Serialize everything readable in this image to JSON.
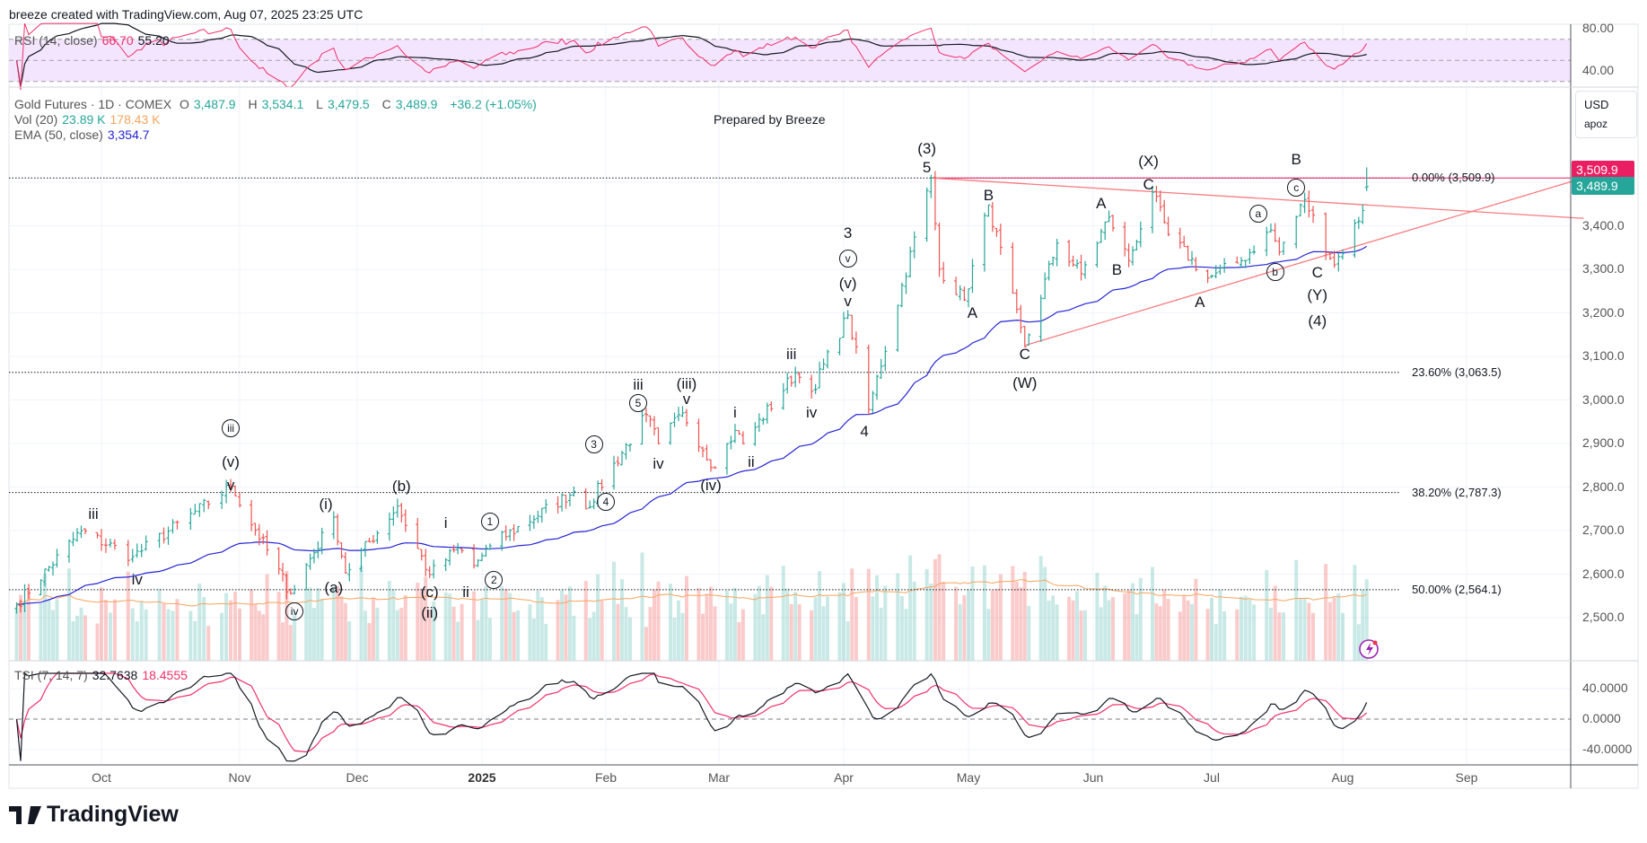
{
  "header": {
    "attribution": "breeze created with TradingView.com, Aug 07, 2025 23:25 UTC"
  },
  "rsi_legend": {
    "label": "RSI (14, close)",
    "rsi": "66.70",
    "ma": "55.20"
  },
  "main_legend": {
    "symbol": "Gold Futures · 1D · COMEX",
    "o_label": "O",
    "open": "3,487.9",
    "h_label": "H",
    "high": "3,534.1",
    "l_label": "L",
    "low": "3,479.5",
    "c_label": "C",
    "close": "3,489.9",
    "change": "+36.2 (+1.05%)"
  },
  "vol_legend": {
    "label": "Vol (20)",
    "vol": "23.89 K",
    "ma": "178.43 K"
  },
  "ema_legend": {
    "label": "EMA (50, close)",
    "value": "3,354.7"
  },
  "tsi_legend": {
    "label": "TSI (7, 14, 7)",
    "tsi": "32.7638",
    "signal": "18.4555"
  },
  "note": "Prepared by Breeze",
  "scale_box": {
    "currency": "USD",
    "user": "apoz"
  },
  "price_labels": {
    "line": "3,509.9",
    "last": "3,489.9"
  },
  "colors": {
    "up": "#26a69a",
    "down": "#ef5350",
    "ema": "#2424d6",
    "vol_ma": "#f7a45d",
    "rsi": "#f2306b",
    "rsi_band": "#f3e5fd",
    "line_label": "#e91e63",
    "last_label": "#26a69a",
    "trendline": "#f77c80"
  },
  "logo": "TradingView",
  "chart_data": {
    "type": "ohlc",
    "title": "Gold Futures · 1D · COMEX",
    "y_axis": {
      "ticks": [
        "2,500.0",
        "2,600.0",
        "2,700.0",
        "2,800.0",
        "2,900.0",
        "3,000.0",
        "3,100.0",
        "3,200.0",
        "3,300.0",
        "3,400.0"
      ],
      "ylim": [
        2420,
        3600
      ]
    },
    "rsi_axis": {
      "ticks": [
        "80.00",
        "40.00"
      ]
    },
    "tsi_axis": {
      "ticks": [
        "40.0000",
        "0.0000",
        "-40.0000"
      ]
    },
    "x_axis": {
      "ticks": [
        "Oct",
        "Nov",
        "Dec",
        "2025",
        "Feb",
        "Mar",
        "Apr",
        "May",
        "Jun",
        "Jul",
        "Aug",
        "Sep"
      ]
    },
    "close_pivots": [
      [
        "2024-09-10",
        2531
      ],
      [
        "2024-09-26",
        2700
      ],
      [
        "2024-10-08",
        2640
      ],
      [
        "2024-10-30",
        2801
      ],
      [
        "2024-11-14",
        2556
      ],
      [
        "2024-11-25",
        2731
      ],
      [
        "2024-11-28",
        2603
      ],
      [
        "2024-12-11",
        2756
      ],
      [
        "2024-12-19",
        2599
      ],
      [
        "2024-12-26",
        2660
      ],
      [
        "2024-12-30",
        2620
      ],
      [
        "2025-01-03",
        2665
      ],
      [
        "2025-01-24",
        2790
      ],
      [
        "2025-01-27",
        2750
      ],
      [
        "2025-02-11",
        2966
      ],
      [
        "2025-02-14",
        2900
      ],
      [
        "2025-02-20",
        2970
      ],
      [
        "2025-02-28",
        2844
      ],
      [
        "2025-03-05",
        2930
      ],
      [
        "2025-03-07",
        2900
      ],
      [
        "2025-03-20",
        3063
      ],
      [
        "2025-03-24",
        3020
      ],
      [
        "2025-04-02",
        3195
      ],
      [
        "2025-04-07",
        2978
      ],
      [
        "2025-04-22",
        3509.9
      ],
      [
        "2025-04-24",
        3300
      ],
      [
        "2025-04-30",
        3230
      ],
      [
        "2025-05-06",
        3448
      ],
      [
        "2025-05-15",
        3122
      ],
      [
        "2025-05-23",
        3360
      ],
      [
        "2025-05-29",
        3290
      ],
      [
        "2025-06-05",
        3420
      ],
      [
        "2025-06-10",
        3320
      ],
      [
        "2025-06-16",
        3477
      ],
      [
        "2025-06-20",
        3380
      ],
      [
        "2025-06-30",
        3280
      ],
      [
        "2025-07-08",
        3320
      ],
      [
        "2025-07-15",
        3390
      ],
      [
        "2025-07-17",
        3340
      ],
      [
        "2025-07-23",
        3460
      ],
      [
        "2025-07-30",
        3310
      ],
      [
        "2025-08-06",
        3435
      ],
      [
        "2025-08-07",
        3489.9
      ]
    ],
    "fib_levels": [
      {
        "label": "0.00% (3,509.9)",
        "price": 3509.9
      },
      {
        "label": "23.60% (3,063.5)",
        "price": 3063.5
      },
      {
        "label": "38.20% (2,787.3)",
        "price": 2787.3
      },
      {
        "label": "50.00% (2,564.1)",
        "price": 2564.1
      }
    ],
    "trendlines": [
      {
        "from": [
          "2025-04-22",
          3509.9
        ],
        "to": [
          "2025-09-30",
          3417
        ]
      },
      {
        "from": [
          "2025-05-15",
          3125
        ],
        "to": [
          "2025-09-30",
          3510
        ]
      }
    ],
    "wave_labels": [
      {
        "t": "iii",
        "d": "2024-09-29",
        "p": 2737
      },
      {
        "t": "iv",
        "d": "2024-10-09",
        "p": 2587
      },
      {
        "t": "iii",
        "d": "2024-10-30",
        "p": 2935,
        "circled": true
      },
      {
        "t": "(v)",
        "d": "2024-10-30",
        "p": 2857
      },
      {
        "t": "v",
        "d": "2024-10-30",
        "p": 2803
      },
      {
        "t": "iv",
        "d": "2024-11-15",
        "p": 2514,
        "circled": true
      },
      {
        "t": "(i)",
        "d": "2024-11-23",
        "p": 2760
      },
      {
        "t": "(a)",
        "d": "2024-11-25",
        "p": 2568
      },
      {
        "t": "(b)",
        "d": "2024-12-12",
        "p": 2801
      },
      {
        "t": "i",
        "d": "2024-12-23",
        "p": 2717
      },
      {
        "t": "(c)",
        "d": "2024-12-19",
        "p": 2558
      },
      {
        "t": "(ii)",
        "d": "2024-12-19",
        "p": 2510
      },
      {
        "t": "ii",
        "d": "2024-12-28",
        "p": 2558
      },
      {
        "t": "1",
        "d": "2025-01-03",
        "p": 2720,
        "circled": true
      },
      {
        "t": "2",
        "d": "2025-01-04",
        "p": 2587,
        "circled": true
      },
      {
        "t": "3",
        "d": "2025-01-29",
        "p": 2898,
        "circled": true
      },
      {
        "t": "4",
        "d": "2025-02-01",
        "p": 2766,
        "circled": true
      },
      {
        "t": "iii",
        "d": "2025-02-09",
        "p": 3034
      },
      {
        "t": "5",
        "d": "2025-02-09",
        "p": 2993,
        "circled": true
      },
      {
        "t": "iv",
        "d": "2025-02-14",
        "p": 2853
      },
      {
        "t": "(iii)",
        "d": "2025-02-21",
        "p": 3036
      },
      {
        "t": "v",
        "d": "2025-02-21",
        "p": 3001
      },
      {
        "t": "(iv)",
        "d": "2025-02-27",
        "p": 2803
      },
      {
        "t": "i",
        "d": "2025-03-05",
        "p": 2970
      },
      {
        "t": "ii",
        "d": "2025-03-09",
        "p": 2857
      },
      {
        "t": "iii",
        "d": "2025-03-19",
        "p": 3104
      },
      {
        "t": "iv",
        "d": "2025-03-24",
        "p": 2970
      },
      {
        "t": "3",
        "d": "2025-04-02",
        "p": 3383
      },
      {
        "t": "v",
        "d": "2025-04-02",
        "p": 3325,
        "circled": true
      },
      {
        "t": "(v)",
        "d": "2025-04-02",
        "p": 3267
      },
      {
        "t": "v",
        "d": "2025-04-02",
        "p": 3226
      },
      {
        "t": "4",
        "d": "2025-04-06",
        "p": 2927
      },
      {
        "t": "(3)",
        "d": "2025-04-21",
        "p": 3576
      },
      {
        "t": "5",
        "d": "2025-04-21",
        "p": 3533
      },
      {
        "t": "B",
        "d": "2025-05-06",
        "p": 3469
      },
      {
        "t": "A",
        "d": "2025-05-02",
        "p": 3199
      },
      {
        "t": "C",
        "d": "2025-05-15",
        "p": 3104
      },
      {
        "t": "(W)",
        "d": "2025-05-15",
        "p": 3038
      },
      {
        "t": "A",
        "d": "2025-06-03",
        "p": 3450
      },
      {
        "t": "B",
        "d": "2025-06-07",
        "p": 3298
      },
      {
        "t": "(X)",
        "d": "2025-06-15",
        "p": 3547
      },
      {
        "t": "C",
        "d": "2025-06-15",
        "p": 3494
      },
      {
        "t": "A",
        "d": "2025-06-28",
        "p": 3224
      },
      {
        "t": "a",
        "d": "2025-07-12",
        "p": 3428,
        "circled": true
      },
      {
        "t": "b",
        "d": "2025-07-16",
        "p": 3294,
        "circled": true
      },
      {
        "t": "B",
        "d": "2025-07-21",
        "p": 3551
      },
      {
        "t": "c",
        "d": "2025-07-21",
        "p": 3487,
        "circled": true
      },
      {
        "t": "C",
        "d": "2025-07-26",
        "p": 3292
      },
      {
        "t": "(Y)",
        "d": "2025-07-26",
        "p": 3241
      },
      {
        "t": "(4)",
        "d": "2025-07-26",
        "p": 3180
      }
    ]
  }
}
